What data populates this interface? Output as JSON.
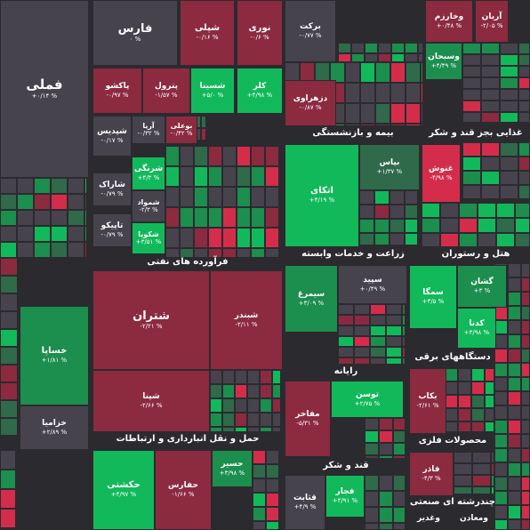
{
  "tiles": [
    {
      "name": "فملی",
      "change": "+۰/۱۴ %"
    },
    {
      "name": "فارس",
      "change": "۰ %"
    },
    {
      "name": "شپلی",
      "change": "-۰/۱۶ %"
    },
    {
      "name": "نوری",
      "change": "-۰/۶ %"
    },
    {
      "name": "برکت",
      "change": "-۰/۷۷ %"
    },
    {
      "name": "وخارزم",
      "change": "+۰/۴۸ %"
    },
    {
      "name": "آریان",
      "change": "-۲/۰۵ %"
    },
    {
      "name": "وسبحان",
      "change": "+۴/۴۹ %"
    },
    {
      "name": "دزهراوی",
      "change": "-۰/۸۷ %"
    },
    {
      "name": "پاکشو",
      "change": "-۰/۹۷ %"
    },
    {
      "name": "پترول",
      "change": "-۱/۵۷ %"
    },
    {
      "name": "شسینا",
      "change": "+۵/۰ %"
    },
    {
      "name": "کلر",
      "change": "+۴/۹۸ %"
    },
    {
      "name": "شپدیس",
      "change": "-۰/۱۷ %"
    },
    {
      "name": "آریا",
      "change": "-۰/۳۲ %"
    },
    {
      "name": "بوعلی",
      "change": "-۰/۴۲ %"
    },
    {
      "name": "شرنگی",
      "change": "+۴/۳ %"
    },
    {
      "name": "شاراک",
      "change": "-۰/۷۹ %"
    },
    {
      "name": "شمواد",
      "change": "-۲/۳ %"
    },
    {
      "name": "تاپیکو",
      "change": "-۰/۷۹ %"
    },
    {
      "name": "شکویا",
      "change": "+۳/۵۱ %"
    },
    {
      "name": "شتران",
      "change": "-۲/۲۱ %"
    },
    {
      "name": "شبندر",
      "change": "-۲/۱۱ %"
    },
    {
      "name": "شپنا",
      "change": "-۲/۶۶ %"
    },
    {
      "name": "خساپا",
      "change": "+۱/۸۱ %"
    },
    {
      "name": "خزامیا",
      "change": "+۲/۸۹ %"
    },
    {
      "name": "حکشتی",
      "change": "+۴/۹۷ %"
    },
    {
      "name": "حفارس",
      "change": "-۱/۶۶ %"
    },
    {
      "name": "حسیر",
      "change": "+۳/۹۸ %"
    },
    {
      "name": "اتکای",
      "change": "+۴/۱۹ %"
    },
    {
      "name": "بپاس",
      "change": "+۱/۳۷ %"
    },
    {
      "name": "غنوش",
      "change": "-۴/۹۸ %"
    },
    {
      "name": "سپید",
      "change": "+۰/۴۹ %"
    },
    {
      "name": "سیمرغ",
      "change": "+۳/۰۹ %"
    },
    {
      "name": "سمگا",
      "change": "+۳/۵ %"
    },
    {
      "name": "گشان",
      "change": "+۳ %"
    },
    {
      "name": "کدنا",
      "change": "+۳/۹۸ %"
    },
    {
      "name": "توسن",
      "change": "+۲/۷۵ %"
    },
    {
      "name": "مفاخر",
      "change": "-۵/۳۱ %"
    },
    {
      "name": "بکاب",
      "change": "-۲/۶۱ %"
    },
    {
      "name": "فجار",
      "change": "+۴/۹۱ %"
    },
    {
      "name": "قثابت",
      "change": "+۴/۹ %"
    },
    {
      "name": "فاذر",
      "change": "-۴/۳ %"
    }
  ],
  "sectors": [
    "فرآورده های نفتی",
    "حمل و نقل انبارداری و ارتباطات",
    "بیمه و بازنشستگی",
    "غذایی بجز قند و شکر",
    "زراعت و خدمات وابسته",
    "هتل و رستوران",
    "دستگاههای برقی",
    "رایانه",
    "محصولات فلزی",
    "قند و شکر",
    "چندرشته ای صنعتی"
  ],
  "small_labels": [
    "وغدیر",
    "ومعادن"
  ]
}
